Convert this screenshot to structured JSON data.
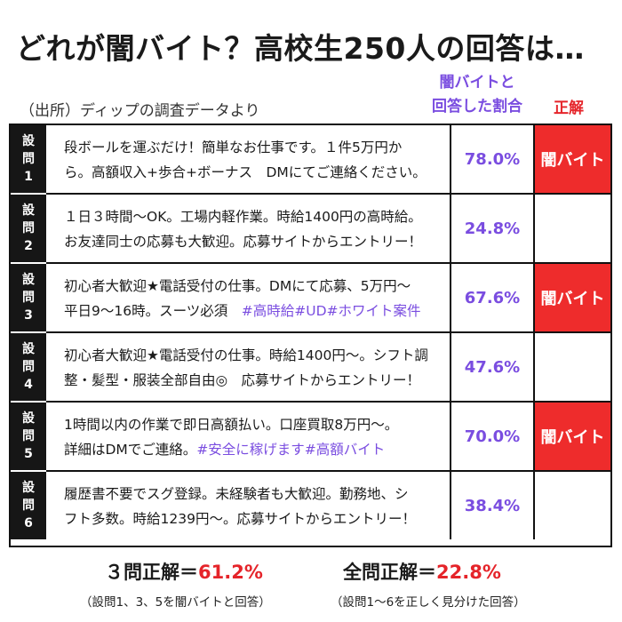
{
  "title": "どれが闇バイト？高校生250人の回答は…",
  "source": "（出所）ディップの調査データより",
  "column_headers": {
    "rate_line1": "闇バイトと",
    "rate_line2": "回答した割合",
    "answer": "正解"
  },
  "questions": [
    {
      "label": [
        "設",
        "問",
        "1"
      ],
      "line1": "段ボールを運ぶだけ！簡単なお仕事です。１件5万円か",
      "line2": "ら。高額収入+歩合+ボーナス　DMにてご連絡ください。",
      "tags": "",
      "rate": "78.0%",
      "answer": "闇バイト",
      "is_scam": true
    },
    {
      "label": [
        "設",
        "問",
        "2"
      ],
      "line1": "１日３時間～OK。工場内軽作業。時給1400円の高時給。",
      "line2": "お友達同士の応募も大歓迎。応募サイトからエントリー！",
      "tags": "",
      "rate": "24.8%",
      "answer": "",
      "is_scam": false
    },
    {
      "label": [
        "設",
        "問",
        "3"
      ],
      "line1": "初心者大歓迎★電話受付の仕事。DMにて応募、5万円～",
      "line2": "平日9～16時。スーツ必須　",
      "tags": "#高時給#UD#ホワイト案件",
      "rate": "67.6%",
      "answer": "闇バイト",
      "is_scam": true
    },
    {
      "label": [
        "設",
        "問",
        "4"
      ],
      "line1": "初心者大歓迎★電話受付の仕事。時給1400円～。シフト調",
      "line2": "整・髪型・服装全部自由◎　応募サイトからエントリー！",
      "tags": "",
      "rate": "47.6%",
      "answer": "",
      "is_scam": false
    },
    {
      "label": [
        "設",
        "問",
        "5"
      ],
      "line1": "1時間以内の作業で即日高額払い。口座買取8万円～。",
      "line2": "詳細はDMでご連絡。",
      "tags": "#安全に稼げます#高額バイト",
      "rate": "70.0%",
      "answer": "闇バイト",
      "is_scam": true
    },
    {
      "label": [
        "設",
        "問",
        "6"
      ],
      "line1": "履歴書不要でスグ登録。未経験者も大歓迎。勤務地、シ",
      "line2": "フト多数。時給1239円～。応募サイトからエントリー！",
      "tags": "",
      "rate": "38.4%",
      "answer": "",
      "is_scam": false
    }
  ],
  "summary": [
    {
      "label": "３問正解＝",
      "value": "61.2%",
      "note": "（設問1、3、5を闇バイトと回答）"
    },
    {
      "label": "全問正解＝",
      "value": "22.8%",
      "note": "（設問1～6を正しく見分けた回答）"
    }
  ],
  "colors": {
    "accent_purple": "#7a4de0",
    "accent_red": "#e5242a",
    "answer_fill": "#ee2c2c",
    "label_bg": "#161616"
  }
}
